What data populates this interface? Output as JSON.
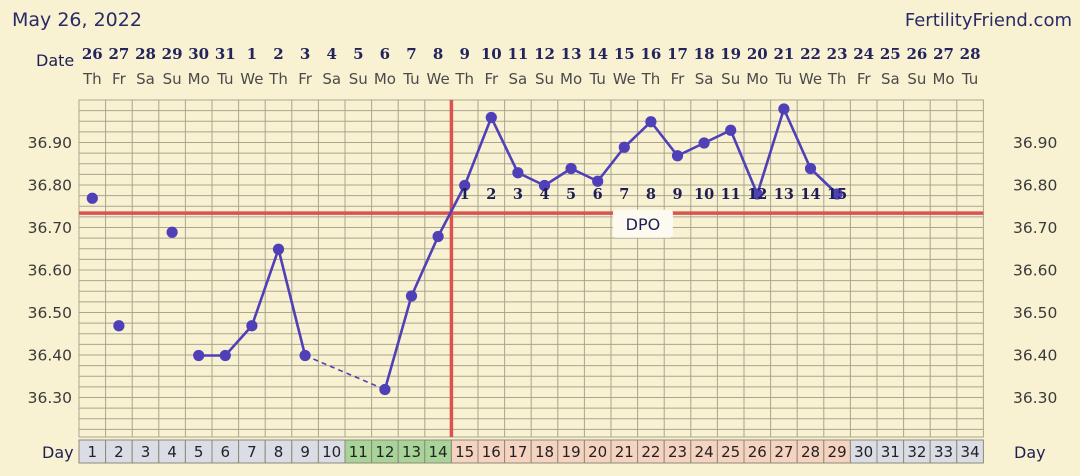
{
  "header": {
    "date": "May 26, 2022",
    "site": "FertilityFriend.com"
  },
  "row_labels": {
    "date": "Date",
    "day": "Day"
  },
  "dpo_label": "DPO",
  "colors": {
    "background": "#f8f2d2",
    "grid": "#a9a58f",
    "temp_line": "#5040b8",
    "coverline": "#d9534f",
    "ovulation_line": "#d9534f",
    "day_cell_default": "#dadce6",
    "day_cell_green": "#a8d49a",
    "day_cell_pink": "#f5d3c0"
  },
  "chart_data": {
    "type": "line",
    "dates": [
      "26",
      "27",
      "28",
      "29",
      "30",
      "31",
      "1",
      "2",
      "3",
      "4",
      "5",
      "6",
      "7",
      "8",
      "9",
      "10",
      "11",
      "12",
      "13",
      "14",
      "15",
      "16",
      "17",
      "18",
      "19",
      "20",
      "21",
      "22",
      "23",
      "24",
      "25",
      "26",
      "27",
      "28"
    ],
    "weekdays": [
      "Th",
      "Fr",
      "Sa",
      "Su",
      "Mo",
      "Tu",
      "We",
      "Th",
      "Fr",
      "Sa",
      "Su",
      "Mo",
      "Tu",
      "We",
      "Th",
      "Fr",
      "Sa",
      "Su",
      "Mo",
      "Tu",
      "We",
      "Th",
      "Fr",
      "Sa",
      "Su",
      "Mo",
      "Tu",
      "We",
      "Th",
      "Fr",
      "Sa",
      "Su",
      "Mo",
      "Tu"
    ],
    "cycle_days": [
      1,
      2,
      3,
      4,
      5,
      6,
      7,
      8,
      9,
      10,
      11,
      12,
      13,
      14,
      15,
      16,
      17,
      18,
      19,
      20,
      21,
      22,
      23,
      24,
      25,
      26,
      27,
      28,
      29,
      30,
      31,
      32,
      33,
      34
    ],
    "day_cell_colors": [
      "default",
      "default",
      "default",
      "default",
      "default",
      "default",
      "default",
      "default",
      "default",
      "default",
      "green",
      "green",
      "green",
      "green",
      "pink",
      "pink",
      "pink",
      "pink",
      "pink",
      "pink",
      "pink",
      "pink",
      "pink",
      "pink",
      "pink",
      "pink",
      "pink",
      "pink",
      "pink",
      "default",
      "default",
      "default",
      "default",
      "default"
    ],
    "y_ticks": [
      "36.90",
      "36.80",
      "36.70",
      "36.60",
      "36.50",
      "36.40",
      "36.30"
    ],
    "ylim": [
      36.25,
      37.07
    ],
    "temperatures": [
      {
        "day": 1,
        "temp": 36.77,
        "connected": false
      },
      {
        "day": 2,
        "temp": 36.47,
        "connected": true
      },
      {
        "day": 4,
        "temp": 36.69,
        "connected": false
      },
      {
        "day": 5,
        "temp": 36.4,
        "connected": true
      },
      {
        "day": 6,
        "temp": 36.4,
        "connected": true
      },
      {
        "day": 7,
        "temp": 36.47,
        "connected": true
      },
      {
        "day": 8,
        "temp": 36.65,
        "connected": true
      },
      {
        "day": 9,
        "temp": 36.4,
        "connected": true
      },
      {
        "day": 12,
        "temp": 36.32,
        "connected": true
      },
      {
        "day": 13,
        "temp": 36.54,
        "connected": true
      },
      {
        "day": 14,
        "temp": 36.68,
        "connected": true
      },
      {
        "day": 15,
        "temp": 36.8,
        "connected": true
      },
      {
        "day": 16,
        "temp": 36.96,
        "connected": true
      },
      {
        "day": 17,
        "temp": 36.83,
        "connected": true
      },
      {
        "day": 18,
        "temp": 36.8,
        "connected": true
      },
      {
        "day": 19,
        "temp": 36.84,
        "connected": true
      },
      {
        "day": 20,
        "temp": 36.81,
        "connected": true
      },
      {
        "day": 21,
        "temp": 36.89,
        "connected": true
      },
      {
        "day": 22,
        "temp": 36.95,
        "connected": true
      },
      {
        "day": 23,
        "temp": 36.87,
        "connected": true
      },
      {
        "day": 24,
        "temp": 36.9,
        "connected": true
      },
      {
        "day": 25,
        "temp": 36.93,
        "connected": true
      },
      {
        "day": 26,
        "temp": 36.78,
        "connected": true
      },
      {
        "day": 27,
        "temp": 36.98,
        "connected": true
      },
      {
        "day": 28,
        "temp": 36.84,
        "connected": true
      },
      {
        "day": 29,
        "temp": 36.78,
        "connected": true
      }
    ],
    "dashed_segments": [
      [
        2,
        5
      ],
      [
        9,
        12
      ]
    ],
    "coverline": 36.735,
    "ovulation_day": 14,
    "dpo_labels": [
      "1",
      "2",
      "3",
      "4",
      "5",
      "6",
      "7",
      "8",
      "9",
      "10",
      "11",
      "12",
      "13",
      "14",
      "15"
    ],
    "dpo_start_day": 15,
    "dpo_y": 36.79,
    "dpo_label_day": 21.7,
    "dpo_label_y": 36.71,
    "grid": true
  }
}
